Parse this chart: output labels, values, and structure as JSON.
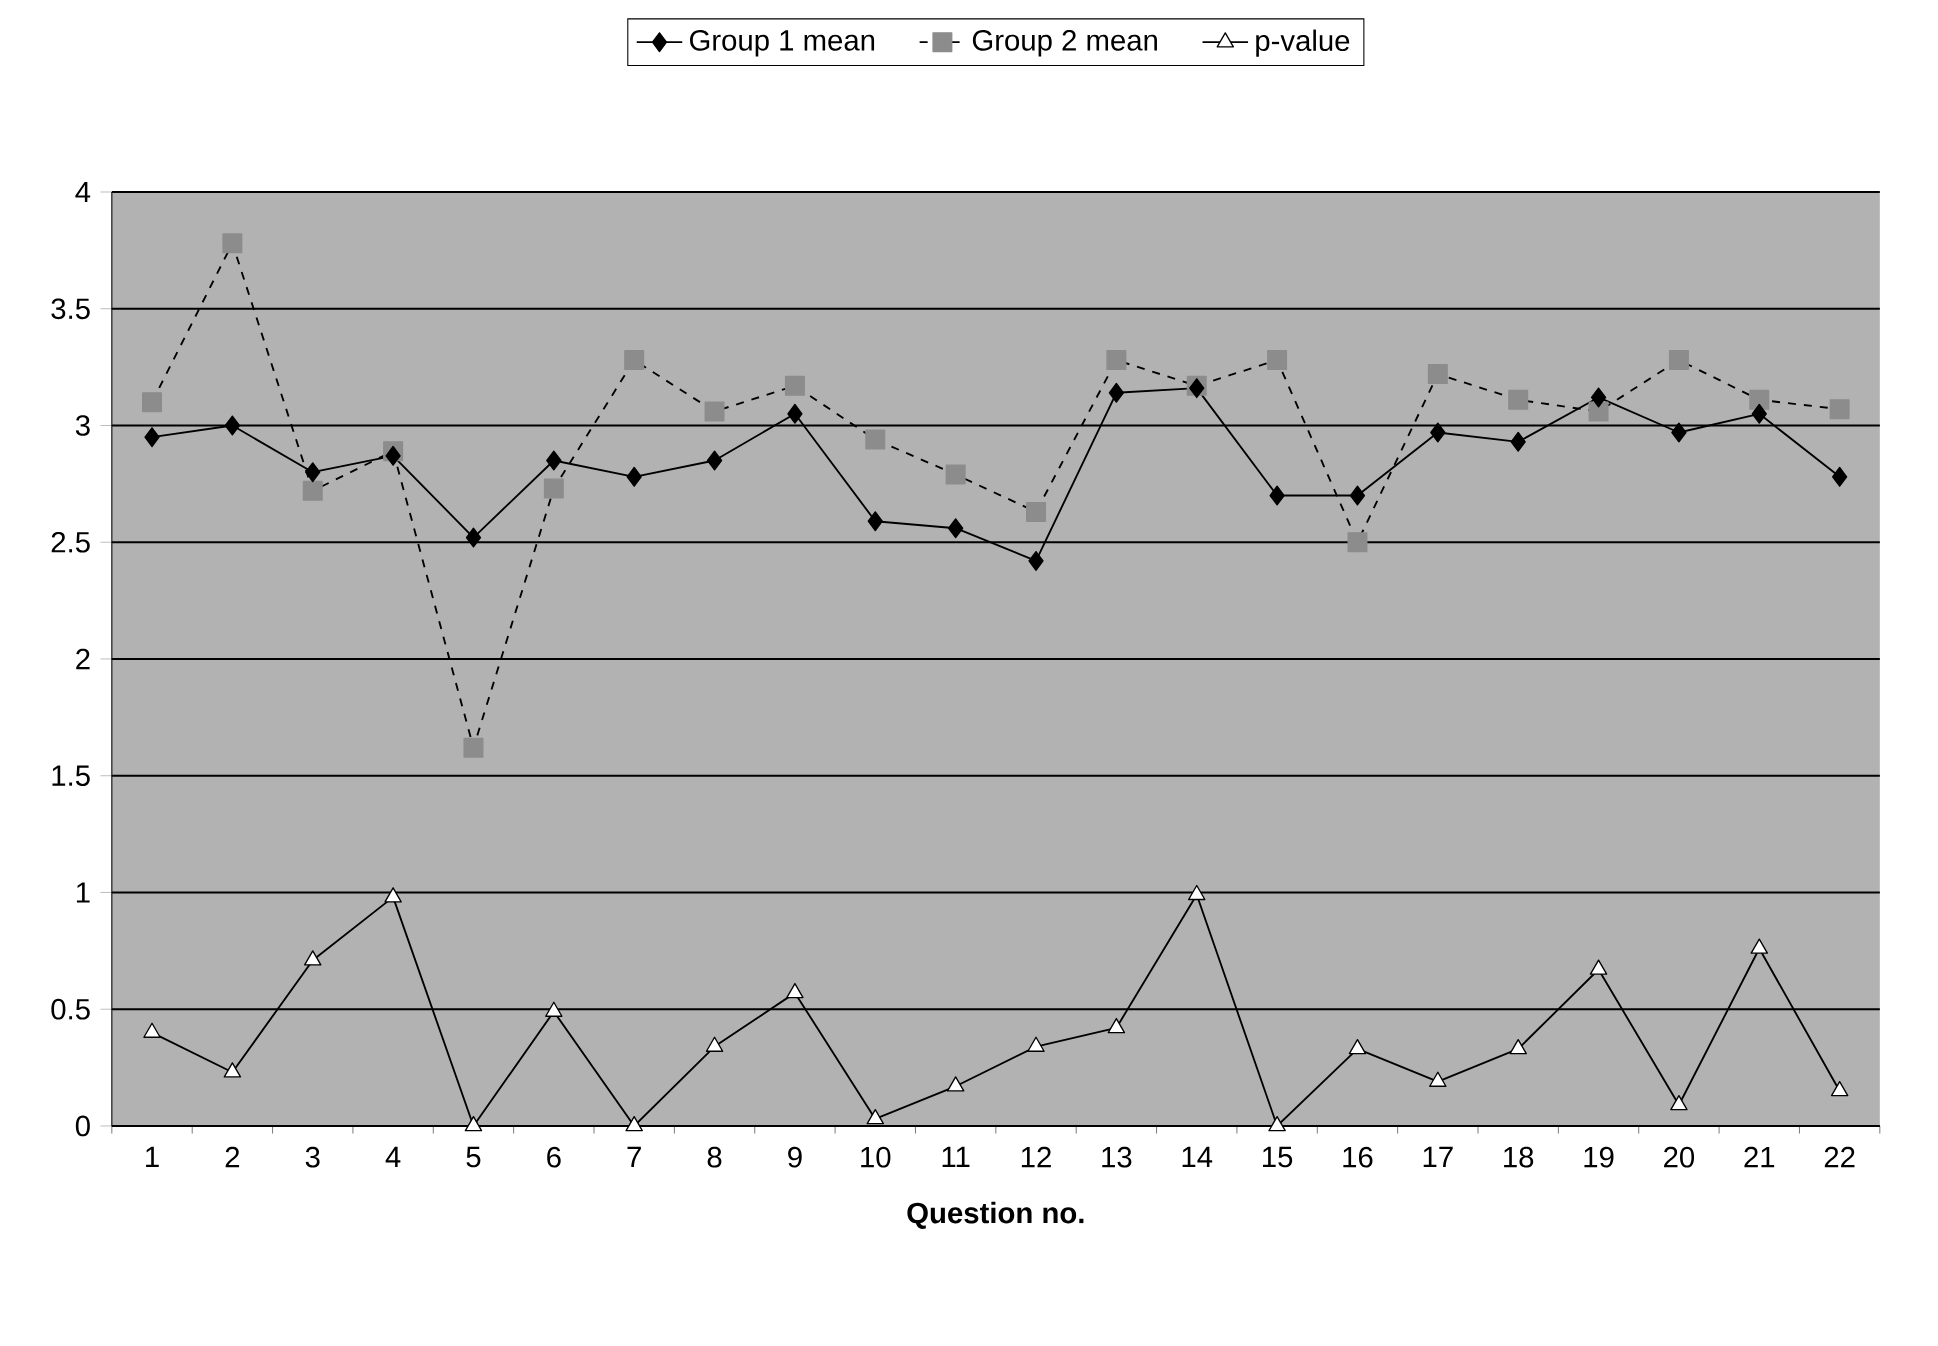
{
  "chart_data": {
    "type": "line",
    "xlabel": "Question no.",
    "categories": [
      "1",
      "2",
      "3",
      "4",
      "5",
      "6",
      "7",
      "8",
      "9",
      "10",
      "11",
      "12",
      "13",
      "14",
      "15",
      "16",
      "17",
      "18",
      "19",
      "20",
      "21",
      "22"
    ],
    "series": [
      {
        "name": "Group 1 mean",
        "color": "#000000",
        "marker": "diamond",
        "line_style": "solid",
        "values": [
          2.95,
          3.0,
          2.8,
          2.87,
          2.52,
          2.85,
          2.78,
          2.85,
          3.05,
          2.59,
          2.56,
          2.42,
          3.14,
          3.16,
          2.7,
          2.7,
          2.97,
          2.93,
          3.12,
          2.97,
          3.05,
          2.78
        ]
      },
      {
        "name": "Group 2 mean",
        "color": "#8c8c8c",
        "marker": "square",
        "line_style": "dashed",
        "values": [
          3.1,
          3.78,
          2.72,
          2.89,
          1.62,
          2.73,
          3.28,
          3.06,
          3.17,
          2.94,
          2.79,
          2.63,
          3.28,
          3.17,
          3.28,
          2.5,
          3.22,
          3.11,
          3.06,
          3.28,
          3.11,
          3.07
        ]
      },
      {
        "name": "p-value",
        "color": "#ffffff",
        "marker": "triangle",
        "line_style": "solid",
        "values": [
          0.4,
          0.23,
          0.71,
          0.98,
          0.0,
          0.49,
          0.0,
          0.34,
          0.57,
          0.03,
          0.17,
          0.34,
          0.42,
          0.99,
          0.0,
          0.33,
          0.19,
          0.33,
          0.67,
          0.09,
          0.76,
          0.15
        ]
      }
    ],
    "ylim": [
      0,
      4
    ],
    "yticks": [
      0,
      0.5,
      1,
      1.5,
      2,
      2.5,
      3,
      3.5,
      4
    ],
    "grid": "y",
    "legend": "top"
  }
}
